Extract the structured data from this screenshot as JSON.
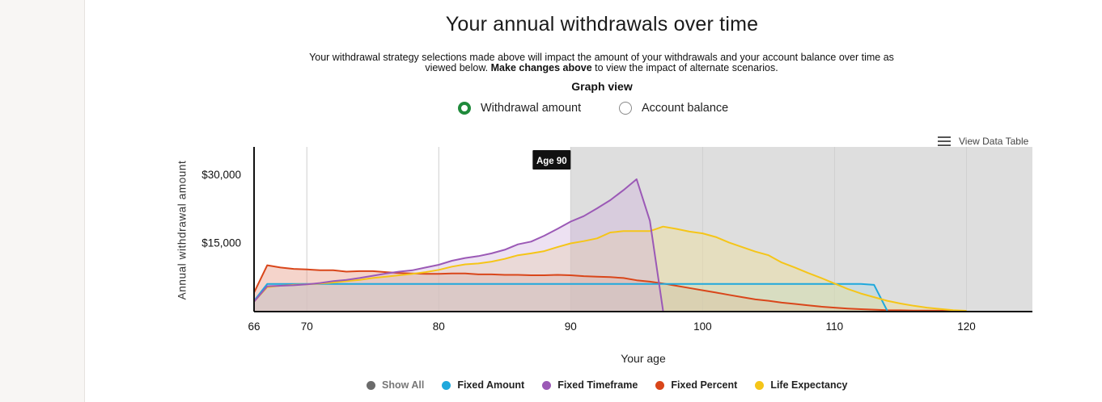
{
  "page": {
    "title": "Your annual withdrawals over time",
    "description_part1": "Your withdrawal strategy selections made above will impact the amount of your withdrawals and your account balance over time as viewed below.",
    "description_bold": "Make changes above",
    "description_part2": "to view the impact of alternate scenarios.",
    "graph_view_label": "Graph view",
    "radio_options": [
      {
        "label": "Withdrawal amount",
        "selected": true
      },
      {
        "label": "Account balance",
        "selected": false
      }
    ],
    "view_data_table_label": "View Data Table",
    "selected_color": "#1f8a3b"
  },
  "chart_data": {
    "type": "area",
    "xlabel": "Your age",
    "ylabel": "Annual  withdrawal  amount",
    "x_ticks": [
      66,
      70,
      80,
      90,
      100,
      110,
      120
    ],
    "y_ticks": [
      {
        "value": 15000,
        "label": "$15,000"
      },
      {
        "value": 30000,
        "label": "$30,000"
      }
    ],
    "xlim": [
      66,
      125
    ],
    "ylim": [
      0,
      36000
    ],
    "shaded_region": {
      "from": 90,
      "to": 125,
      "color": "#dedede"
    },
    "tooltip": {
      "x": 90,
      "label": "Age 90"
    },
    "legend": [
      {
        "name": "Show All",
        "color": "#6b6b6b",
        "muted": true
      },
      {
        "name": "Fixed Amount",
        "color": "#1fa8dc"
      },
      {
        "name": "Fixed Timeframe",
        "color": "#9b59b6"
      },
      {
        "name": "Fixed Percent",
        "color": "#d9461a"
      },
      {
        "name": "Life Expectancy",
        "color": "#f5c518"
      }
    ],
    "series": [
      {
        "name": "Fixed Percent",
        "color": "#d9461a",
        "fill": "#e58f76",
        "points": [
          [
            66,
            4000
          ],
          [
            67,
            10000
          ],
          [
            68,
            9500
          ],
          [
            69,
            9200
          ],
          [
            70,
            9100
          ],
          [
            71,
            8900
          ],
          [
            72,
            8900
          ],
          [
            73,
            8600
          ],
          [
            74,
            8700
          ],
          [
            75,
            8700
          ],
          [
            76,
            8500
          ],
          [
            77,
            8300
          ],
          [
            78,
            8200
          ],
          [
            79,
            8100
          ],
          [
            80,
            8100
          ],
          [
            81,
            8200
          ],
          [
            82,
            8200
          ],
          [
            83,
            8000
          ],
          [
            84,
            8000
          ],
          [
            85,
            7900
          ],
          [
            86,
            7900
          ],
          [
            87,
            7800
          ],
          [
            88,
            7800
          ],
          [
            89,
            7900
          ],
          [
            90,
            7800
          ],
          [
            91,
            7600
          ],
          [
            92,
            7500
          ],
          [
            93,
            7400
          ],
          [
            94,
            7200
          ],
          [
            95,
            6700
          ],
          [
            96,
            6400
          ],
          [
            97,
            6000
          ],
          [
            98,
            5500
          ],
          [
            99,
            5000
          ],
          [
            100,
            4500
          ],
          [
            101,
            4000
          ],
          [
            102,
            3500
          ],
          [
            103,
            3000
          ],
          [
            104,
            2500
          ],
          [
            105,
            2200
          ],
          [
            106,
            1800
          ],
          [
            107,
            1500
          ],
          [
            108,
            1200
          ],
          [
            109,
            900
          ],
          [
            110,
            700
          ],
          [
            111,
            500
          ],
          [
            112,
            350
          ],
          [
            113,
            250
          ],
          [
            114,
            150
          ],
          [
            115,
            100
          ],
          [
            116,
            60
          ],
          [
            117,
            30
          ],
          [
            118,
            15
          ],
          [
            119,
            5
          ],
          [
            120,
            0
          ]
        ]
      },
      {
        "name": "Fixed Amount",
        "color": "#1fa8dc",
        "fill": "#a9d8e8",
        "points": [
          [
            66,
            2200
          ],
          [
            67,
            5900
          ],
          [
            112,
            5900
          ],
          [
            113,
            5700
          ],
          [
            114,
            0
          ]
        ]
      },
      {
        "name": "Life Expectancy",
        "color": "#f5c518",
        "fill": "#f3e08f",
        "points": [
          [
            66,
            2000
          ],
          [
            67,
            5200
          ],
          [
            68,
            5500
          ],
          [
            69,
            5700
          ],
          [
            70,
            5800
          ],
          [
            71,
            6000
          ],
          [
            72,
            6200
          ],
          [
            73,
            6500
          ],
          [
            74,
            6800
          ],
          [
            75,
            7200
          ],
          [
            76,
            7500
          ],
          [
            77,
            7800
          ],
          [
            78,
            8100
          ],
          [
            79,
            8500
          ],
          [
            80,
            9000
          ],
          [
            81,
            9700
          ],
          [
            82,
            10200
          ],
          [
            83,
            10400
          ],
          [
            84,
            10800
          ],
          [
            85,
            11400
          ],
          [
            86,
            12200
          ],
          [
            87,
            12600
          ],
          [
            88,
            13100
          ],
          [
            89,
            14000
          ],
          [
            90,
            14800
          ],
          [
            91,
            15300
          ],
          [
            92,
            15900
          ],
          [
            93,
            17200
          ],
          [
            94,
            17500
          ],
          [
            95,
            17500
          ],
          [
            96,
            17500
          ],
          [
            97,
            18500
          ],
          [
            98,
            18000
          ],
          [
            99,
            17400
          ],
          [
            100,
            17000
          ],
          [
            101,
            16200
          ],
          [
            102,
            15000
          ],
          [
            103,
            14000
          ],
          [
            104,
            13000
          ],
          [
            105,
            12200
          ],
          [
            106,
            10600
          ],
          [
            107,
            9500
          ],
          [
            108,
            8300
          ],
          [
            109,
            7200
          ],
          [
            110,
            6000
          ],
          [
            111,
            4800
          ],
          [
            112,
            3800
          ],
          [
            113,
            3000
          ],
          [
            114,
            2200
          ],
          [
            115,
            1600
          ],
          [
            116,
            1100
          ],
          [
            117,
            700
          ],
          [
            118,
            400
          ],
          [
            119,
            150
          ],
          [
            120,
            0
          ]
        ]
      },
      {
        "name": "Fixed Timeframe",
        "color": "#9b59b6",
        "fill": "#cfb0dc",
        "points": [
          [
            66,
            2000
          ],
          [
            67,
            5400
          ],
          [
            68,
            5500
          ],
          [
            69,
            5600
          ],
          [
            70,
            5800
          ],
          [
            71,
            6100
          ],
          [
            72,
            6500
          ],
          [
            73,
            6800
          ],
          [
            74,
            7200
          ],
          [
            75,
            7700
          ],
          [
            76,
            8200
          ],
          [
            77,
            8600
          ],
          [
            78,
            8900
          ],
          [
            79,
            9500
          ],
          [
            80,
            10100
          ],
          [
            81,
            11000
          ],
          [
            82,
            11600
          ],
          [
            83,
            12000
          ],
          [
            84,
            12600
          ],
          [
            85,
            13400
          ],
          [
            86,
            14600
          ],
          [
            87,
            15200
          ],
          [
            88,
            16500
          ],
          [
            89,
            18000
          ],
          [
            90,
            19600
          ],
          [
            91,
            20800
          ],
          [
            92,
            22500
          ],
          [
            93,
            24300
          ],
          [
            94,
            26500
          ],
          [
            95,
            28900
          ],
          [
            96,
            19800
          ],
          [
            97,
            0
          ]
        ]
      }
    ]
  }
}
